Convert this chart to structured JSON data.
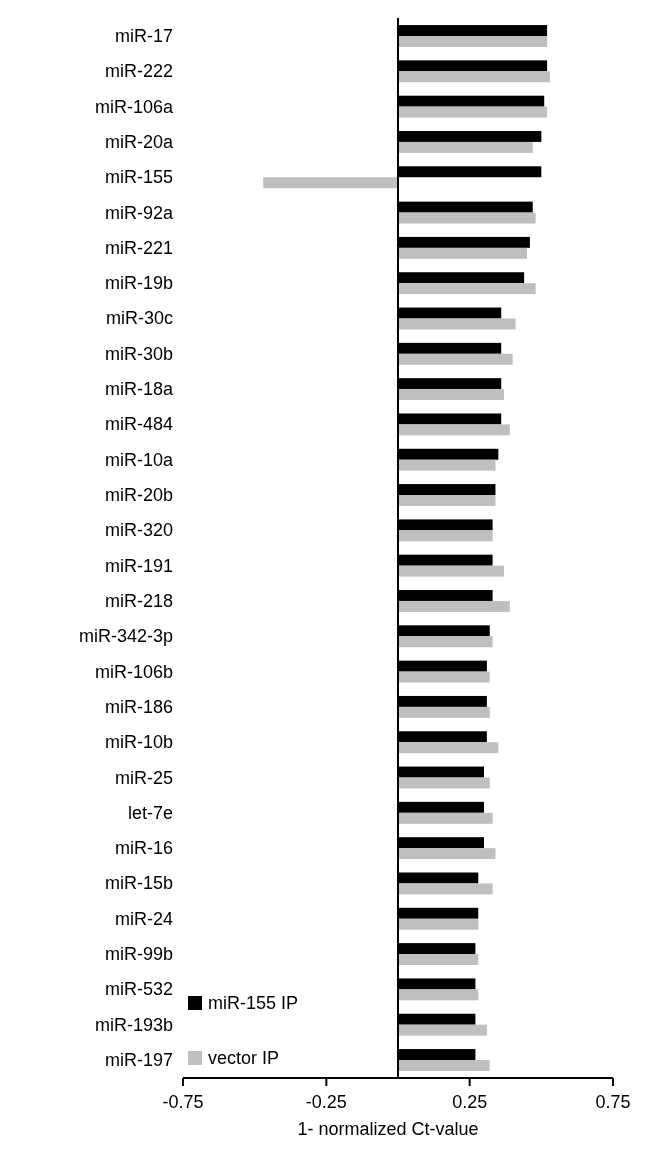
{
  "chart_data": {
    "type": "bar",
    "orientation": "horizontal",
    "xlabel": "1- normalized Ct-value",
    "categories": [
      "miR-17",
      "miR-222",
      "miR-106a",
      "miR-20a",
      "miR-155",
      "miR-92a",
      "miR-221",
      "miR-19b",
      "miR-30c",
      "miR-30b",
      "miR-18a",
      "miR-484",
      "miR-10a",
      "miR-20b",
      "miR-320",
      "miR-191",
      "miR-218",
      "miR-342-3p",
      "miR-106b",
      "miR-186",
      "miR-10b",
      "miR-25",
      "let-7e",
      "miR-16",
      "miR-15b",
      "miR-24",
      "miR-99b",
      "miR-532",
      "miR-193b",
      "miR-197"
    ],
    "series": [
      {
        "name": "miR-155 IP",
        "color": "#000000",
        "values": [
          0.52,
          0.52,
          0.51,
          0.5,
          0.5,
          0.47,
          0.46,
          0.44,
          0.36,
          0.36,
          0.36,
          0.36,
          0.35,
          0.34,
          0.33,
          0.33,
          0.33,
          0.32,
          0.31,
          0.31,
          0.31,
          0.3,
          0.3,
          0.3,
          0.28,
          0.28,
          0.27,
          0.27,
          0.27,
          0.27
        ]
      },
      {
        "name": "vector IP",
        "color": "#bfbfbf",
        "values": [
          0.52,
          0.53,
          0.52,
          0.47,
          -0.47,
          0.48,
          0.45,
          0.48,
          0.41,
          0.4,
          0.37,
          0.39,
          0.34,
          0.34,
          0.33,
          0.37,
          0.39,
          0.33,
          0.32,
          0.32,
          0.35,
          0.32,
          0.33,
          0.34,
          0.33,
          0.28,
          0.28,
          0.28,
          0.31,
          0.32
        ]
      }
    ],
    "xlim": [
      -0.75,
      0.75
    ],
    "xticks": [
      -0.75,
      -0.25,
      0.25,
      0.75
    ],
    "legend": "bottom left"
  }
}
